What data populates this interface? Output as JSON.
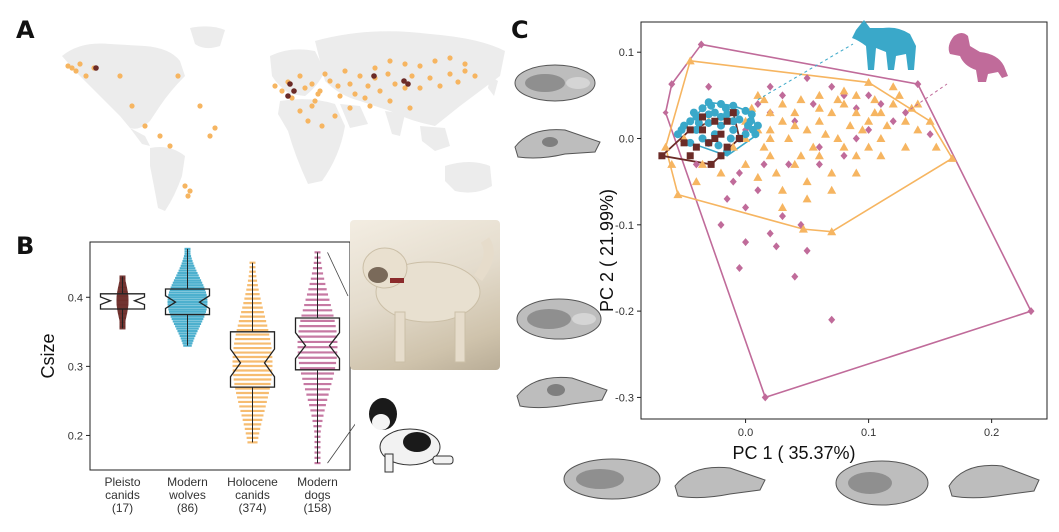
{
  "panels": {
    "a": "A",
    "b": "B",
    "c": "C"
  },
  "colors": {
    "pleisto": "#6b2b27",
    "wolf": "#3aa8c9",
    "holocene": "#f6b561",
    "dog": "#c06b9a",
    "land": "#ececec"
  },
  "map": {
    "ocean": "#ffffff",
    "site_colors": [
      "holocene",
      "pleisto"
    ]
  },
  "chart_data": [
    {
      "type": "box",
      "ylabel": "Csize",
      "ylim": [
        0.15,
        0.48
      ],
      "yticks": [
        "0.2",
        "0.3",
        "0.4"
      ],
      "ytick_values": [
        0.2,
        0.3,
        0.4
      ],
      "groups": [
        {
          "name": "Pleisto canids",
          "label_lines": [
            "Pleisto",
            "canids"
          ],
          "n": "(17)",
          "whisker_low": 0.355,
          "q1": 0.383,
          "median": 0.395,
          "q3": 0.405,
          "whisker_high": 0.43,
          "color_key": "pleisto"
        },
        {
          "name": "Modern wolves",
          "label_lines": [
            "Modern",
            "wolves"
          ],
          "n": "(86)",
          "whisker_low": 0.33,
          "q1": 0.375,
          "median": 0.393,
          "q3": 0.412,
          "whisker_high": 0.47,
          "color_key": "wolf"
        },
        {
          "name": "Holocene canids",
          "label_lines": [
            "Holocene",
            "canids"
          ],
          "n": "(374)",
          "whisker_low": 0.19,
          "q1": 0.27,
          "median": 0.305,
          "q3": 0.35,
          "whisker_high": 0.45,
          "color_key": "holocene"
        },
        {
          "name": "Modern dogs",
          "label_lines": [
            "Modern",
            "dogs"
          ],
          "n": "(158)",
          "whisker_low": 0.16,
          "q1": 0.295,
          "median": 0.33,
          "q3": 0.37,
          "whisker_high": 0.465,
          "color_key": "dog"
        }
      ]
    },
    {
      "type": "scatter",
      "xlabel": "PC 1 ( 35.37%)",
      "ylabel": "PC 2 ( 21.99%)",
      "xlim": [
        -0.085,
        0.245
      ],
      "ylim": [
        -0.325,
        0.135
      ],
      "xticks": [
        "0.0",
        "0.1",
        "0.2"
      ],
      "xtick_values": [
        0.0,
        0.1,
        0.2
      ],
      "yticks": [
        "-0.3",
        "-0.2",
        "-0.1",
        "0.0",
        "0.1"
      ],
      "ytick_values": [
        -0.3,
        -0.2,
        -0.1,
        0.0,
        0.1
      ],
      "hulls": [
        {
          "series": "Modern dogs",
          "color_key": "dog",
          "points": [
            [
              -0.036,
              0.109
            ],
            [
              0.14,
              0.063
            ],
            [
              0.232,
              -0.2
            ],
            [
              0.016,
              -0.3
            ],
            [
              -0.065,
              0.03
            ],
            [
              -0.06,
              0.063
            ]
          ]
        },
        {
          "series": "Holocene canids",
          "color_key": "holocene",
          "points": [
            [
              -0.045,
              0.09
            ],
            [
              0.1,
              0.065
            ],
            [
              0.15,
              0.02
            ],
            [
              0.168,
              -0.023
            ],
            [
              0.07,
              -0.108
            ],
            [
              0.047,
              -0.105
            ],
            [
              -0.055,
              -0.065
            ],
            [
              -0.065,
              -0.01
            ]
          ]
        },
        {
          "series": "Modern wolves",
          "color_key": "wolf",
          "points": [
            [
              -0.03,
              0.042
            ],
            [
              -0.01,
              0.038
            ],
            [
              0.005,
              0.03
            ],
            [
              0.01,
              0.005
            ],
            [
              -0.015,
              -0.02
            ],
            [
              -0.045,
              -0.005
            ],
            [
              -0.055,
              0.005
            ]
          ]
        },
        {
          "series": "Pleisto canids",
          "color_key": "pleisto",
          "points": [
            [
              -0.045,
              0.01
            ],
            [
              -0.01,
              0.03
            ],
            [
              -0.005,
              0.0
            ],
            [
              -0.028,
              -0.03
            ],
            [
              -0.068,
              -0.02
            ]
          ]
        }
      ],
      "series": [
        {
          "name": "Pleisto canids",
          "marker": "square",
          "color_key": "pleisto",
          "points": [
            [
              -0.068,
              -0.02
            ],
            [
              -0.045,
              0.01
            ],
            [
              -0.035,
              0.01
            ],
            [
              -0.025,
              0.02
            ],
            [
              -0.02,
              0.005
            ],
            [
              -0.015,
              0.02
            ],
            [
              -0.01,
              0.03
            ],
            [
              -0.005,
              0.0
            ],
            [
              -0.028,
              -0.03
            ],
            [
              -0.04,
              -0.01
            ],
            [
              -0.03,
              -0.005
            ],
            [
              -0.015,
              -0.01
            ],
            [
              -0.05,
              -0.005
            ],
            [
              -0.02,
              -0.02
            ],
            [
              -0.035,
              0.025
            ],
            [
              -0.045,
              -0.02
            ],
            [
              -0.025,
              0.0
            ]
          ]
        },
        {
          "name": "Modern wolves",
          "marker": "circle",
          "color_key": "wolf",
          "points": [
            [
              -0.03,
              0.042
            ],
            [
              -0.02,
              0.04
            ],
            [
              -0.01,
              0.038
            ],
            [
              0.0,
              0.032
            ],
            [
              0.005,
              0.028
            ],
            [
              0.01,
              0.015
            ],
            [
              0.008,
              0.005
            ],
            [
              -0.005,
              0.0
            ],
            [
              -0.015,
              -0.015
            ],
            [
              -0.03,
              -0.005
            ],
            [
              -0.045,
              -0.005
            ],
            [
              -0.055,
              0.005
            ],
            [
              -0.05,
              0.015
            ],
            [
              -0.04,
              0.025
            ],
            [
              -0.035,
              0.035
            ],
            [
              -0.025,
              0.03
            ],
            [
              -0.015,
              0.028
            ],
            [
              -0.005,
              0.022
            ],
            [
              0.002,
              0.015
            ],
            [
              -0.01,
              0.01
            ],
            [
              -0.02,
              0.015
            ],
            [
              -0.03,
              0.018
            ],
            [
              -0.04,
              0.01
            ],
            [
              -0.035,
              0.0
            ],
            [
              -0.025,
              0.005
            ],
            [
              -0.012,
              0.0
            ],
            [
              -0.02,
              0.025
            ],
            [
              -0.008,
              0.03
            ],
            [
              0.004,
              0.02
            ],
            [
              -0.045,
              0.02
            ],
            [
              -0.028,
              0.038
            ],
            [
              -0.016,
              0.035
            ],
            [
              -0.038,
              0.018
            ],
            [
              -0.022,
              -0.008
            ],
            [
              0.006,
              0.01
            ],
            [
              -0.052,
              0.01
            ],
            [
              -0.042,
              0.03
            ],
            [
              -0.01,
              0.02
            ],
            [
              -0.03,
              0.028
            ],
            [
              0.0,
              0.005
            ]
          ]
        },
        {
          "name": "Holocene canids",
          "marker": "triangle",
          "color_key": "holocene",
          "points": [
            [
              -0.045,
              0.09
            ],
            [
              0.1,
              0.065
            ],
            [
              0.15,
              0.02
            ],
            [
              0.168,
              -0.023
            ],
            [
              0.07,
              -0.108
            ],
            [
              0.047,
              -0.105
            ],
            [
              -0.055,
              -0.065
            ],
            [
              -0.065,
              -0.01
            ],
            [
              0.0,
              0.02
            ],
            [
              0.01,
              0.01
            ],
            [
              0.02,
              0.0
            ],
            [
              0.03,
              0.02
            ],
            [
              0.04,
              0.03
            ],
            [
              0.05,
              0.01
            ],
            [
              0.06,
              0.02
            ],
            [
              0.07,
              0.03
            ],
            [
              0.08,
              0.04
            ],
            [
              0.09,
              0.03
            ],
            [
              0.1,
              0.02
            ],
            [
              0.11,
              0.03
            ],
            [
              0.12,
              0.04
            ],
            [
              0.13,
              0.02
            ],
            [
              0.14,
              0.01
            ],
            [
              0.1,
              -0.01
            ],
            [
              0.08,
              -0.01
            ],
            [
              0.06,
              -0.02
            ],
            [
              0.04,
              -0.03
            ],
            [
              0.02,
              -0.02
            ],
            [
              0.0,
              -0.03
            ],
            [
              -0.02,
              -0.04
            ],
            [
              -0.04,
              -0.05
            ],
            [
              0.03,
              -0.06
            ],
            [
              0.05,
              -0.05
            ],
            [
              0.07,
              -0.04
            ],
            [
              0.09,
              -0.02
            ],
            [
              0.11,
              0.0
            ],
            [
              0.12,
              0.06
            ],
            [
              0.09,
              0.05
            ],
            [
              0.06,
              0.05
            ],
            [
              0.03,
              0.04
            ],
            [
              0.01,
              0.05
            ],
            [
              -0.01,
              0.03
            ],
            [
              -0.03,
              0.02
            ],
            [
              0.015,
              -0.01
            ],
            [
              0.035,
              0.0
            ],
            [
              0.055,
              -0.01
            ],
            [
              0.075,
              0.0
            ],
            [
              0.095,
              0.01
            ],
            [
              0.115,
              0.015
            ],
            [
              0.135,
              0.035
            ],
            [
              0.025,
              -0.04
            ],
            [
              0.045,
              -0.02
            ],
            [
              0.065,
              0.005
            ],
            [
              0.085,
              0.015
            ],
            [
              0.105,
              0.045
            ],
            [
              0.125,
              0.05
            ],
            [
              0.02,
              0.03
            ],
            [
              0.04,
              0.015
            ],
            [
              0.06,
              0.035
            ],
            [
              0.08,
              0.055
            ],
            [
              0.0,
              0.0
            ],
            [
              -0.01,
              -0.01
            ],
            [
              0.01,
              -0.045
            ],
            [
              0.03,
              -0.08
            ],
            [
              0.05,
              -0.07
            ],
            [
              0.07,
              -0.06
            ],
            [
              0.09,
              -0.04
            ],
            [
              0.11,
              -0.02
            ],
            [
              0.13,
              -0.01
            ],
            [
              0.02,
              0.01
            ],
            [
              0.005,
              0.035
            ],
            [
              0.015,
              0.045
            ],
            [
              0.045,
              0.045
            ],
            [
              0.075,
              0.045
            ],
            [
              0.105,
              0.03
            ],
            [
              0.14,
              0.04
            ],
            [
              0.155,
              -0.01
            ],
            [
              -0.06,
              -0.03
            ],
            [
              -0.05,
              0.0
            ],
            [
              -0.035,
              -0.03
            ]
          ]
        },
        {
          "name": "Modern dogs",
          "marker": "diamond",
          "color_key": "dog",
          "points": [
            [
              -0.036,
              0.109
            ],
            [
              0.14,
              0.063
            ],
            [
              0.232,
              -0.2
            ],
            [
              0.016,
              -0.3
            ],
            [
              -0.06,
              0.063
            ],
            [
              0.02,
              0.06
            ],
            [
              0.05,
              0.07
            ],
            [
              0.08,
              0.05
            ],
            [
              0.11,
              0.04
            ],
            [
              0.13,
              0.03
            ],
            [
              0.15,
              0.005
            ],
            [
              0.09,
              0.0
            ],
            [
              0.06,
              -0.01
            ],
            [
              0.04,
              0.02
            ],
            [
              0.02,
              0.03
            ],
            [
              0.0,
              0.01
            ],
            [
              -0.02,
              -0.02
            ],
            [
              -0.01,
              -0.05
            ],
            [
              0.01,
              -0.06
            ],
            [
              0.03,
              -0.09
            ],
            [
              0.0,
              -0.12
            ],
            [
              -0.005,
              -0.15
            ],
            [
              0.02,
              -0.11
            ],
            [
              0.05,
              -0.13
            ],
            [
              0.07,
              -0.21
            ],
            [
              0.04,
              -0.16
            ],
            [
              0.0,
              -0.08
            ],
            [
              -0.02,
              -0.1
            ],
            [
              0.06,
              -0.03
            ],
            [
              0.08,
              -0.02
            ],
            [
              0.1,
              0.01
            ],
            [
              0.12,
              0.02
            ],
            [
              -0.04,
              -0.03
            ],
            [
              -0.03,
              0.06
            ],
            [
              0.01,
              0.04
            ],
            [
              0.03,
              0.05
            ],
            [
              0.07,
              0.06
            ],
            [
              0.1,
              0.05
            ],
            [
              0.035,
              -0.03
            ],
            [
              0.015,
              -0.03
            ],
            [
              -0.015,
              -0.07
            ],
            [
              0.025,
              -0.125
            ],
            [
              0.045,
              -0.1
            ],
            [
              -0.005,
              -0.04
            ],
            [
              0.09,
              0.035
            ],
            [
              0.055,
              0.04
            ]
          ]
        }
      ]
    }
  ]
}
